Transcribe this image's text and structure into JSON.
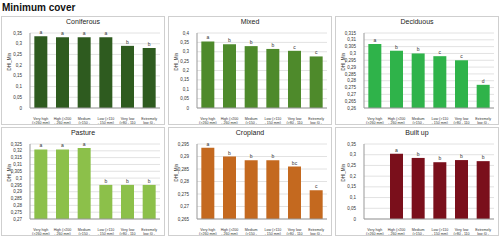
{
  "title": "Minimum cover",
  "chart_data": [
    {
      "type": "bar",
      "title": "Coniferous",
      "y_label": "DHI_Min",
      "categories": [
        "Very high (>260 mm)",
        "High (>200 - 260 mm)",
        "Medium (>150 - 200 mm)",
        "Low (>110 - 150 mm)",
        "Very low (>80 - 110 mm)",
        "Extremely low (0 - 80 mm)"
      ],
      "values": [
        0.335,
        0.33,
        0.33,
        0.33,
        0.29,
        0.28
      ],
      "annotations": [
        "a",
        "a",
        "a",
        "a",
        "b",
        "b"
      ],
      "color": "#2e5b1f",
      "ylim": [
        0,
        0.35
      ],
      "yticks": [
        0,
        {
          "value": 0.05,
          "label": "0,05"
        },
        {
          "value": 0.1,
          "label": "0,1"
        },
        {
          "value": 0.15,
          "label": "0,15"
        },
        {
          "value": 0.2,
          "label": "0,2"
        },
        {
          "value": 0.25,
          "label": "0,25"
        },
        {
          "value": 0.3,
          "label": "0,3"
        },
        {
          "value": 0.35,
          "label": "0,35"
        }
      ],
      "grid": true
    },
    {
      "type": "bar",
      "title": "Mixed",
      "y_label": "DHI_Min",
      "categories": [
        "Very high (>260 mm)",
        "High (>200 - 260 mm)",
        "Medium (>150 - 200 mm)",
        "Low (>110 - 150 mm)",
        "Very low (>80 - 110 mm)",
        "Extremely low (0 - 80 mm)"
      ],
      "values": [
        0.355,
        0.34,
        0.33,
        0.315,
        0.305,
        0.275
      ],
      "annotations": [
        "a",
        "b",
        "b",
        "b",
        "c",
        "c"
      ],
      "color": "#4e8a2b",
      "ylim": [
        0,
        0.4
      ],
      "yticks": [
        0,
        {
          "value": 0.05,
          "label": "0,05"
        },
        {
          "value": 0.1,
          "label": "0,1"
        },
        {
          "value": 0.15,
          "label": "0,15"
        },
        {
          "value": 0.2,
          "label": "0,2"
        },
        {
          "value": 0.25,
          "label": "0,25"
        },
        {
          "value": 0.3,
          "label": "0,3"
        },
        {
          "value": 0.35,
          "label": "0,35"
        },
        {
          "value": 0.4,
          "label": "0,4"
        }
      ],
      "grid": true
    },
    {
      "type": "bar",
      "title": "Deciduous",
      "y_label": "DHI_Min",
      "categories": [
        "Very high (>260 mm)",
        "High (>200 - 260 mm)",
        "Medium (>150 - 200 mm)",
        "Low (>110 - 150 mm)",
        "Very low (>80 - 110 mm)",
        "Extremely low (0 - 80 mm)"
      ],
      "values": [
        0.307,
        0.302,
        0.3,
        0.298,
        0.295,
        0.277
      ],
      "annotations": [
        "a",
        "b",
        "b",
        "c",
        "c",
        "d"
      ],
      "color": "#2fb34a",
      "ylim": [
        0.26,
        0.315
      ],
      "yticks": [
        {
          "value": 0.26,
          "label": "0,26"
        },
        {
          "value": 0.265,
          "label": "0,265"
        },
        {
          "value": 0.27,
          "label": "0,27"
        },
        {
          "value": 0.275,
          "label": "0,275"
        },
        {
          "value": 0.28,
          "label": "0,28"
        },
        {
          "value": 0.285,
          "label": "0,285"
        },
        {
          "value": 0.29,
          "label": "0,29"
        },
        {
          "value": 0.295,
          "label": "0,295"
        },
        {
          "value": 0.3,
          "label": "0,3"
        },
        {
          "value": 0.305,
          "label": "0,305"
        },
        {
          "value": 0.31,
          "label": "0,31"
        },
        {
          "value": 0.315,
          "label": "0,315"
        }
      ],
      "grid": true
    },
    {
      "type": "bar",
      "title": "Pasture",
      "y_label": "DHI_Min",
      "categories": [
        "Very high (>260 mm)",
        "High (>200 - 260 mm)",
        "Medium (>150 - 200 mm)",
        "Low (>110 - 150 mm)",
        "Very low (>80 - 110 mm)",
        "Extremely low (0 - 80 mm)"
      ],
      "values": [
        0.321,
        0.321,
        0.322,
        0.295,
        0.295,
        0.295
      ],
      "annotations": [
        "a",
        "a",
        "a",
        "b",
        "b",
        "b"
      ],
      "color": "#8cc04a",
      "ylim": [
        0.27,
        0.325
      ],
      "yticks": [
        {
          "value": 0.27,
          "label": "0,27"
        },
        {
          "value": 0.275,
          "label": "0,275"
        },
        {
          "value": 0.28,
          "label": "0,28"
        },
        {
          "value": 0.285,
          "label": "0,285"
        },
        {
          "value": 0.29,
          "label": "0,29"
        },
        {
          "value": 0.295,
          "label": "0,295"
        },
        {
          "value": 0.3,
          "label": "0,3"
        },
        {
          "value": 0.305,
          "label": "0,305"
        },
        {
          "value": 0.31,
          "label": "0,31"
        },
        {
          "value": 0.315,
          "label": "0,315"
        },
        {
          "value": 0.32,
          "label": "0,32"
        },
        {
          "value": 0.325,
          "label": "0,325"
        }
      ],
      "grid": true
    },
    {
      "type": "bar",
      "title": "Cropland",
      "y_label": "DHI_Min",
      "categories": [
        "Very high (>260 mm)",
        "High (>200 - 260 mm)",
        "Medium (>150 - 200 mm)",
        "Low (>110 - 150 mm)",
        "Very low (>80 - 110 mm)",
        "Extremely low (0 - 80 mm)"
      ],
      "values": [
        0.2935,
        0.29,
        0.2885,
        0.2885,
        0.286,
        0.2765
      ],
      "annotations": [
        "a",
        "b",
        "b",
        "b",
        "bc",
        "c"
      ],
      "color": "#c4691f",
      "ylim": [
        0.265,
        0.295
      ],
      "yticks": [
        {
          "value": 0.265,
          "label": "0,265"
        },
        {
          "value": 0.27,
          "label": "0,27"
        },
        {
          "value": 0.275,
          "label": "0,275"
        },
        {
          "value": 0.28,
          "label": "0,28"
        },
        {
          "value": 0.285,
          "label": "0,285"
        },
        {
          "value": 0.29,
          "label": "0,29"
        },
        {
          "value": 0.295,
          "label": "0,295"
        }
      ],
      "grid": true
    },
    {
      "type": "bar",
      "title": "Built up",
      "y_label": "DHI_Min",
      "categories": [
        "Very high (>260 mm)",
        "High (>200 - 260 mm)",
        "Medium (>150 - 200 mm)",
        "Low (>110 - 150 mm)",
        "Very low (>80 - 110 mm)",
        "Extremely low (0 - 80 mm)"
      ],
      "values": [
        null,
        0.305,
        0.285,
        0.265,
        0.275,
        0.27
      ],
      "annotations": [
        null,
        "a",
        "b",
        "b",
        "b",
        "b"
      ],
      "color": "#7a0f1b",
      "ylim": [
        0,
        0.35
      ],
      "yticks": [
        0,
        {
          "value": 0.05,
          "label": "0,05"
        },
        {
          "value": 0.1,
          "label": "0,1"
        },
        {
          "value": 0.15,
          "label": "0,15"
        },
        {
          "value": 0.2,
          "label": "0,2"
        },
        {
          "value": 0.25,
          "label": "0,25"
        },
        {
          "value": 0.3,
          "label": "0,3"
        },
        {
          "value": 0.35,
          "label": "0,35"
        }
      ],
      "grid": true
    }
  ]
}
